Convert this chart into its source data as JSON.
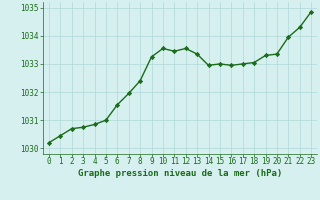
{
  "x": [
    0,
    1,
    2,
    3,
    4,
    5,
    6,
    7,
    8,
    9,
    10,
    11,
    12,
    13,
    14,
    15,
    16,
    17,
    18,
    19,
    20,
    21,
    22,
    23
  ],
  "y": [
    1030.2,
    1030.45,
    1030.7,
    1030.75,
    1030.85,
    1031.0,
    1031.55,
    1031.95,
    1032.4,
    1033.25,
    1033.55,
    1033.45,
    1033.55,
    1033.35,
    1032.95,
    1033.0,
    1032.95,
    1033.0,
    1033.05,
    1033.3,
    1033.35,
    1033.95,
    1034.3,
    1034.85
  ],
  "line_color": "#1a6b1a",
  "marker": "D",
  "marker_size": 2.2,
  "bg_color": "#d6f0f0",
  "grid_color": "#b0d8d8",
  "xlabel": "Graphe pression niveau de la mer (hPa)",
  "xlabel_color": "#1a6b1a",
  "tick_color": "#1a6b1a",
  "ylim": [
    1029.8,
    1035.2
  ],
  "yticks": [
    1030,
    1031,
    1032,
    1033,
    1034,
    1035
  ],
  "xlim": [
    -0.5,
    23.5
  ],
  "xticks": [
    0,
    1,
    2,
    3,
    4,
    5,
    6,
    7,
    8,
    9,
    10,
    11,
    12,
    13,
    14,
    15,
    16,
    17,
    18,
    19,
    20,
    21,
    22,
    23
  ],
  "line_width": 1.0,
  "tick_fontsize": 5.5,
  "xlabel_fontsize": 6.5
}
